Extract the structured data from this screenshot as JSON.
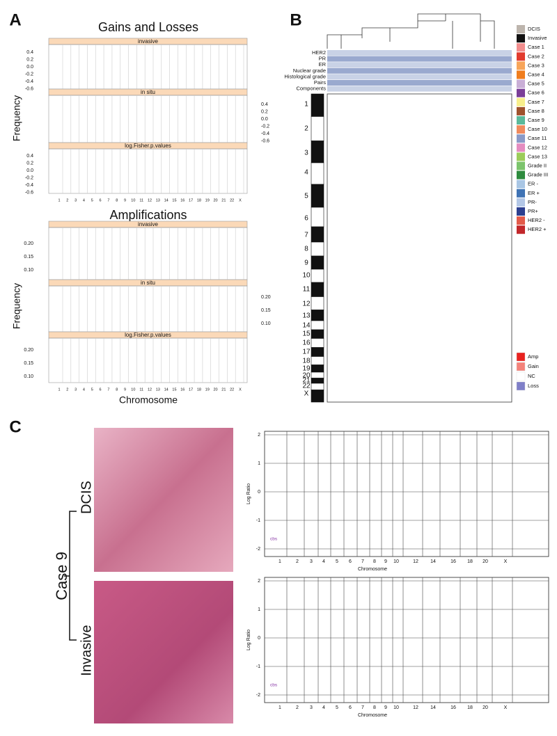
{
  "panel_a": {
    "label": "A",
    "gains_losses": {
      "title": "Gains and Losses",
      "ylabel": "Frequency",
      "strips": [
        "invasive",
        "in situ",
        "log.Fisher.p.values"
      ],
      "yticks": [
        "0.4",
        "0.2",
        "0.0",
        "-0.2",
        "-0.4",
        "-0.6"
      ]
    },
    "amplifications": {
      "title": "Amplifications",
      "ylabel": "Frequency",
      "strips": [
        "invasive",
        "in situ",
        "log.Fisher.p.values"
      ],
      "yticks": [
        "0.20",
        "0.15",
        "0.10"
      ]
    },
    "chromosomes": [
      "1",
      "2",
      "3",
      "4",
      "5",
      "6",
      "7",
      "8",
      "9",
      "10",
      "11",
      "12",
      "13",
      "14",
      "15",
      "16",
      "17",
      "18",
      "19",
      "20",
      "21",
      "22",
      "X"
    ],
    "xlabel": "Chromosome"
  },
  "panel_b": {
    "label": "B",
    "tracks": [
      "HER2",
      "PR",
      "ER",
      "Nuclear grade",
      "Histological grade",
      "Pairs",
      "Components"
    ],
    "chromosomes": [
      "1",
      "2",
      "3",
      "4",
      "5",
      "6",
      "7",
      "8",
      "9",
      "10",
      "11",
      "12",
      "13",
      "14",
      "15",
      "16",
      "17",
      "18",
      "19",
      "20",
      "21",
      "22",
      "X"
    ],
    "legend": [
      {
        "label": "DCIS",
        "color": "#bdb5ad"
      },
      {
        "label": "Invasive",
        "color": "#111111"
      },
      {
        "label": "Case 1",
        "color": "#f28e8e"
      },
      {
        "label": "Case 2",
        "color": "#e23b2e"
      },
      {
        "label": "Case 3",
        "color": "#f7a55a"
      },
      {
        "label": "Case 4",
        "color": "#f07d1e"
      },
      {
        "label": "Case 5",
        "color": "#c9aed6"
      },
      {
        "label": "Case 6",
        "color": "#7b3f98"
      },
      {
        "label": "Case 7",
        "color": "#f8ef8c"
      },
      {
        "label": "Case 8",
        "color": "#a0522d"
      },
      {
        "label": "Case 9",
        "color": "#5bb99a"
      },
      {
        "label": "Case 10",
        "color": "#f08a5d"
      },
      {
        "label": "Case 11",
        "color": "#8a9ac8"
      },
      {
        "label": "Case 12",
        "color": "#e48cc0"
      },
      {
        "label": "Case 13",
        "color": "#9ccc5a"
      },
      {
        "label": "Grade II",
        "color": "#7cc46c"
      },
      {
        "label": "Grade III",
        "color": "#2e8b3e"
      },
      {
        "label": "ER -",
        "color": "#a9c6e4"
      },
      {
        "label": "ER +",
        "color": "#3f73b5"
      },
      {
        "label": "PR-",
        "color": "#b3c7e6"
      },
      {
        "label": "PR+",
        "color": "#2c3f8f"
      },
      {
        "label": "HER2 -",
        "color": "#e35b4a"
      },
      {
        "label": "HER2 +",
        "color": "#c2282b"
      }
    ],
    "cn_legend": [
      {
        "label": "Amp",
        "color": "#e8221f"
      },
      {
        "label": "Gain",
        "color": "#f4827a"
      },
      {
        "label": "NC",
        "color": "#ffffff"
      },
      {
        "label": "Loss",
        "color": "#7f7fc8"
      }
    ]
  },
  "panel_c": {
    "label": "C",
    "case": "Case 9",
    "dcis": "DCIS",
    "invasive": "Invasive",
    "ylabel": "Log Ratio",
    "xlabel": "Chromosome",
    "method": "cbs",
    "yticks": [
      "2",
      "1",
      "0",
      "-1",
      "-2"
    ],
    "xticks": [
      "1",
      "2",
      "3",
      "4",
      "5",
      "6",
      "7",
      "8",
      "9",
      "10",
      "12",
      "14",
      "16",
      "18",
      "20",
      "X"
    ]
  }
}
